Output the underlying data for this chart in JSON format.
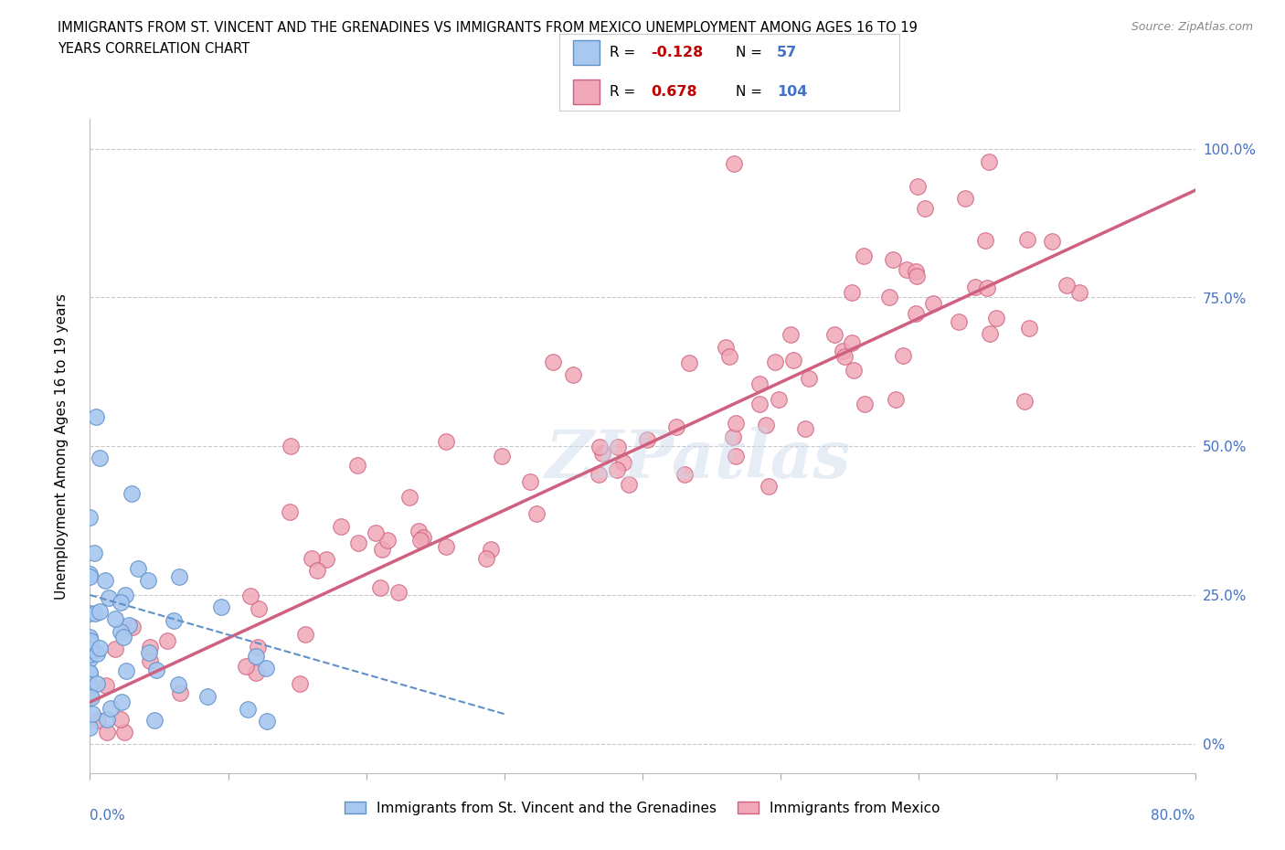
{
  "title_line1": "IMMIGRANTS FROM ST. VINCENT AND THE GRENADINES VS IMMIGRANTS FROM MEXICO UNEMPLOYMENT AMONG AGES 16 TO 19",
  "title_line2": "YEARS CORRELATION CHART",
  "source": "Source: ZipAtlas.com",
  "ylabel": "Unemployment Among Ages 16 to 19 years",
  "ytick_labels": [
    "0%",
    "25.0%",
    "50.0%",
    "75.0%",
    "100.0%"
  ],
  "ytick_values": [
    0.0,
    0.25,
    0.5,
    0.75,
    1.0
  ],
  "xmin": 0.0,
  "xmax": 0.8,
  "ymin": -0.05,
  "ymax": 1.05,
  "blue_R": -0.128,
  "blue_N": 57,
  "pink_R": 0.678,
  "pink_N": 104,
  "blue_color": "#a8c8f0",
  "blue_edge": "#6090c8",
  "pink_color": "#f0a8b8",
  "pink_edge": "#d06080",
  "blue_line_color": "#6090c8",
  "pink_line_color": "#d06080",
  "legend_label_blue": "Immigrants from St. Vincent and the Grenadines",
  "legend_label_pink": "Immigrants from Mexico",
  "watermark": "ZIPatlas",
  "text_color_blue": "#4472c4",
  "r_value_color": "#c00000"
}
